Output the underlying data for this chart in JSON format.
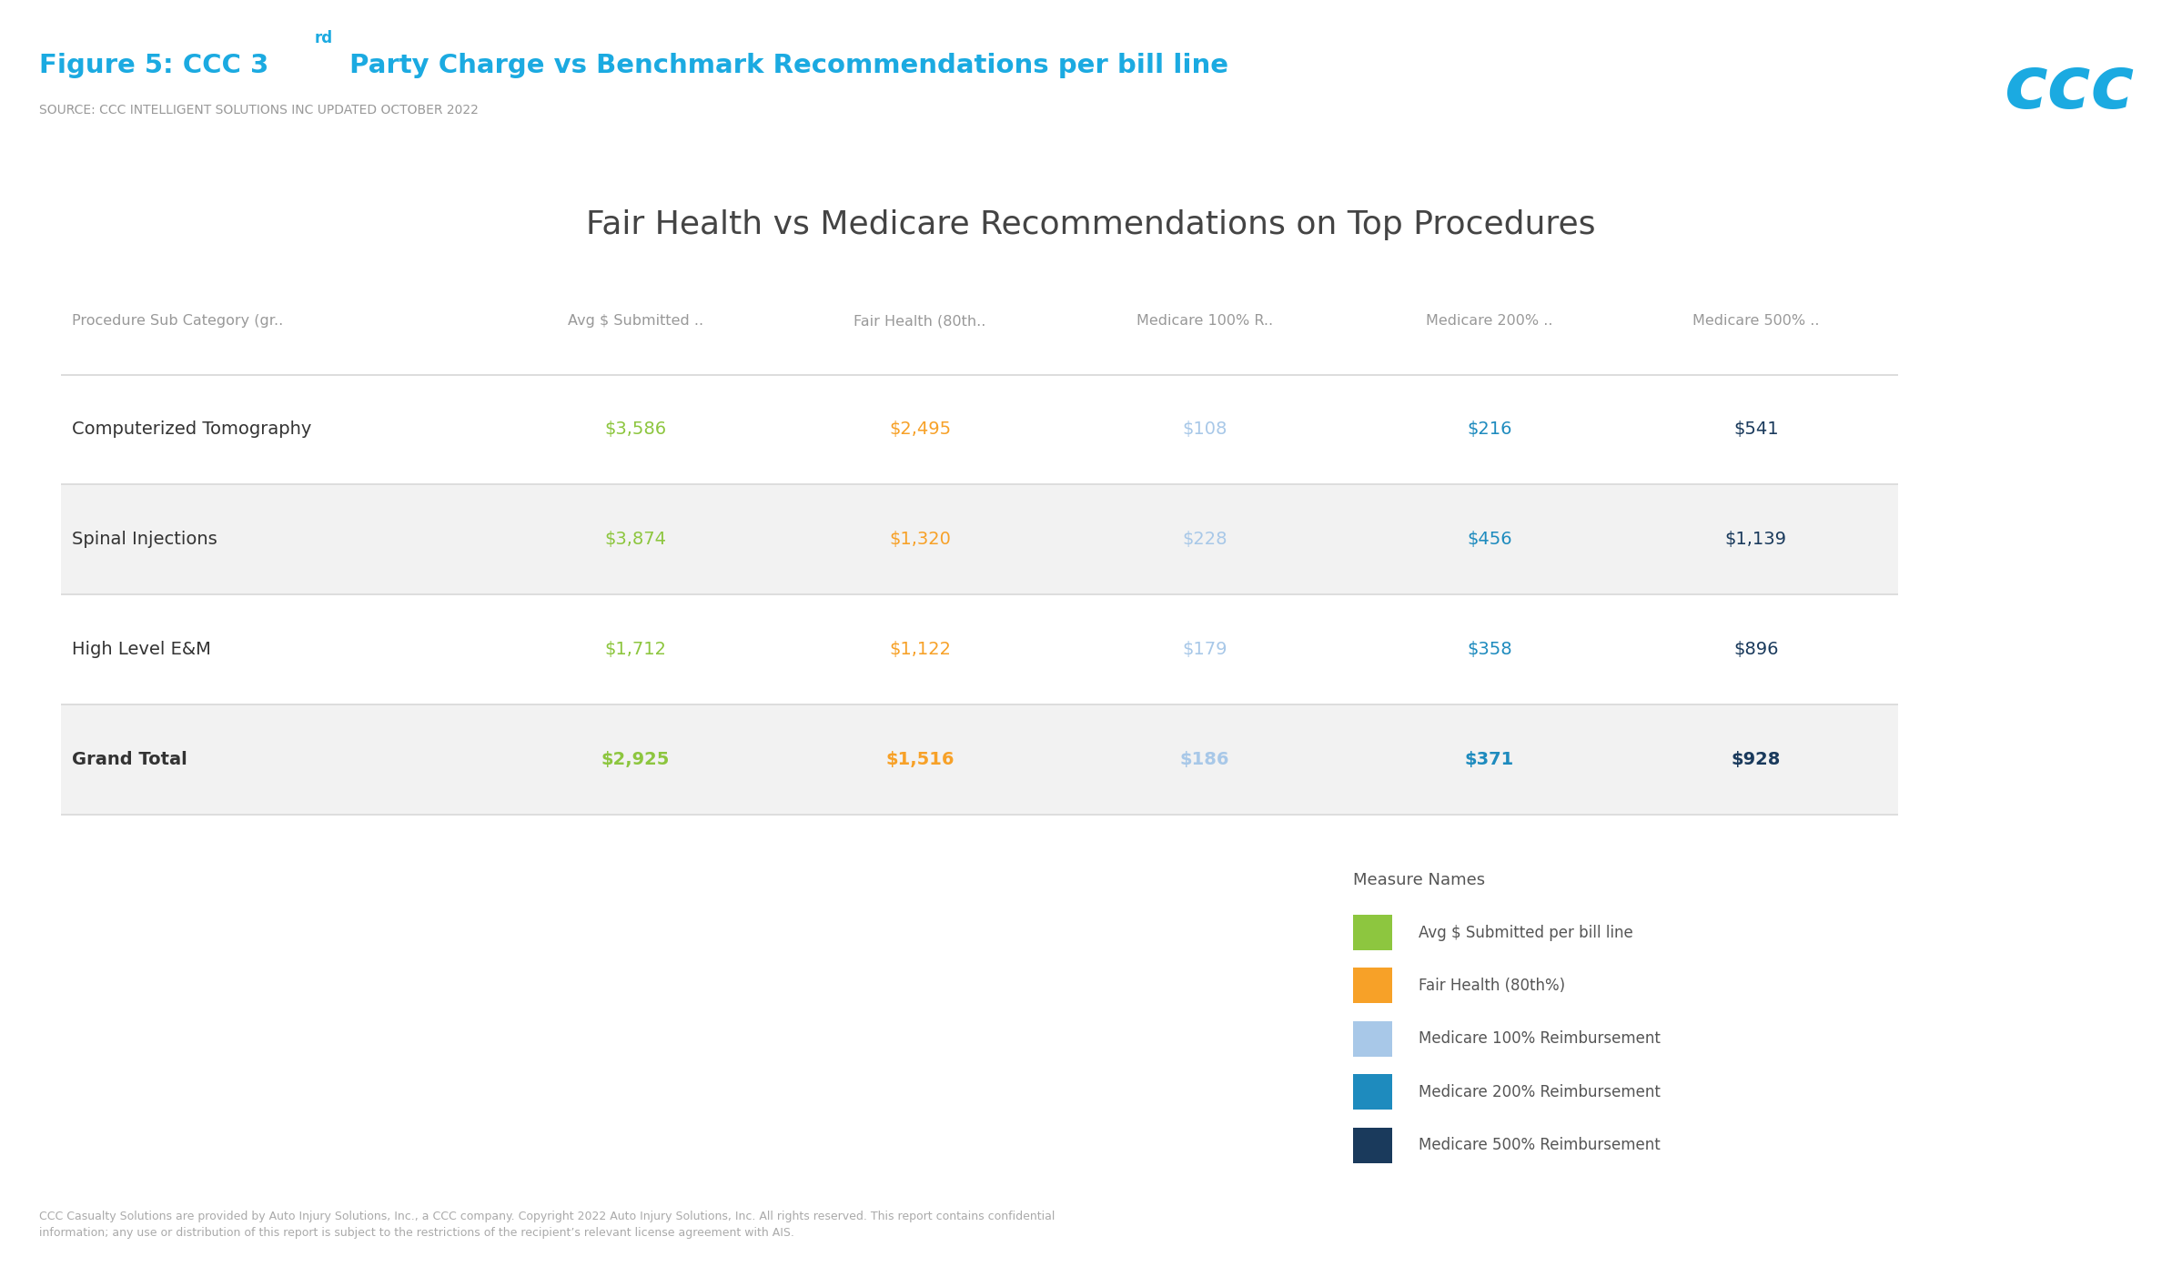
{
  "source_text": "SOURCE: CCC INTELLIGENT SOLUTIONS INC UPDATED OCTOBER 2022",
  "table_title": "Fair Health vs Medicare Recommendations on Top Procedures",
  "footer_text": "CCC Casualty Solutions are provided by Auto Injury Solutions, Inc., a CCC company. Copyright 2022 Auto Injury Solutions, Inc. All rights reserved. This report contains confidential\ninformation; any use or distribution of this report is subject to the restrictions of the recipient’s relevant license agreement with AIS.",
  "columns": [
    "Procedure Sub Category (gr..",
    "Avg $ Submitted ..",
    "Fair Health (80th..",
    "Medicare 100% R..",
    "Medicare 200% ..",
    "Medicare 500% .."
  ],
  "rows": [
    {
      "category": "Computerized Tomography",
      "bold": false,
      "values": [
        "$3,586",
        "$2,495",
        "$108",
        "$216",
        "$541"
      ],
      "shaded": false
    },
    {
      "category": "Spinal Injections",
      "bold": false,
      "values": [
        "$3,874",
        "$1,320",
        "$228",
        "$456",
        "$1,139"
      ],
      "shaded": true
    },
    {
      "category": "High Level E&M",
      "bold": false,
      "values": [
        "$1,712",
        "$1,122",
        "$179",
        "$358",
        "$896"
      ],
      "shaded": false
    },
    {
      "category": "Grand Total",
      "bold": true,
      "values": [
        "$2,925",
        "$1,516",
        "$186",
        "$371",
        "$928"
      ],
      "shaded": true
    }
  ],
  "legend_title": "Measure Names",
  "legend_items": [
    {
      "label": "Avg $ Submitted per bill line",
      "color": "#8DC63F"
    },
    {
      "label": "Fair Health (80th%)",
      "color": "#F7A128"
    },
    {
      "label": "Medicare 100% Reimbursement",
      "color": "#A8C8E8"
    },
    {
      "label": "Medicare 200% Reimbursement",
      "color": "#1E8BBE"
    },
    {
      "label": "Medicare 500% Reimbursement",
      "color": "#1A3A5C"
    }
  ],
  "value_colors": [
    "#8DC63F",
    "#F7A128",
    "#A8C8E8",
    "#1E8BBE",
    "#1A3A5C"
  ],
  "title_blue": "#1BAAE1",
  "header_gray": "#999999",
  "row_text_dark": "#444444",
  "shaded_bg": "#F2F2F2",
  "white_bg": "#FFFFFF",
  "divider_color": "#DDDDDD",
  "footer_color": "#AAAAAA",
  "ccc_logo_color": "#1BAAE1",
  "figsize": [
    23.98,
    13.92
  ],
  "dpi": 100
}
